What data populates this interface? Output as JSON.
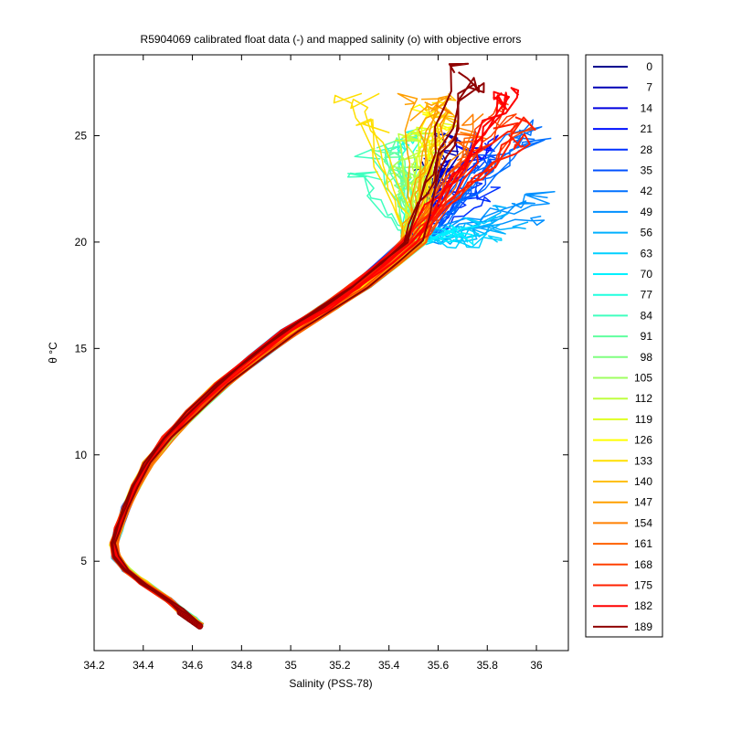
{
  "chart_data": {
    "type": "line",
    "title": "R5904069 calibrated float data (-) and mapped salinity (o) with objective errors",
    "xlabel": "Salinity (PSS-78)",
    "ylabel": "θ °C",
    "xlim": [
      34.2,
      36.13
    ],
    "ylim": [
      0.8,
      28.8
    ],
    "xticks": [
      34.2,
      34.4,
      34.6,
      34.8,
      35.0,
      35.2,
      35.4,
      35.6,
      35.8,
      36.0
    ],
    "xtick_labels": [
      "34.2",
      "34.4",
      "34.6",
      "34.8",
      "35",
      "35.2",
      "35.4",
      "35.6",
      "35.8",
      "36"
    ],
    "yticks": [
      5,
      10,
      15,
      20,
      25
    ],
    "ytick_labels": [
      "5",
      "10",
      "15",
      "20",
      "25"
    ],
    "grid": false,
    "legend_position": "outside-right",
    "base_profile": {
      "salinity": [
        34.63,
        34.6,
        34.55,
        34.5,
        34.4,
        34.33,
        34.29,
        34.28,
        34.3,
        34.33,
        34.37,
        34.42,
        34.5,
        34.6,
        34.72,
        34.86,
        35.0,
        35.15,
        35.28,
        35.4,
        35.5
      ],
      "theta": [
        2.0,
        2.3,
        2.7,
        3.2,
        4.0,
        4.6,
        5.2,
        5.8,
        6.5,
        7.5,
        8.5,
        9.6,
        10.8,
        12.0,
        13.3,
        14.6,
        15.8,
        16.9,
        17.9,
        19.0,
        20.0
      ]
    },
    "series": [
      {
        "name": "0",
        "color": "#00008f",
        "surface_salinity": 35.6,
        "surface_theta": 23.5
      },
      {
        "name": "7",
        "color": "#0000b5",
        "surface_salinity": 35.68,
        "surface_theta": 24.2
      },
      {
        "name": "14",
        "color": "#0000df",
        "surface_salinity": 35.65,
        "surface_theta": 23.0
      },
      {
        "name": "21",
        "color": "#0010ff",
        "surface_salinity": 35.75,
        "surface_theta": 24.8
      },
      {
        "name": "28",
        "color": "#0030ff",
        "surface_salinity": 35.72,
        "surface_theta": 22.5
      },
      {
        "name": "35",
        "color": "#0050ff",
        "surface_salinity": 35.8,
        "surface_theta": 23.8
      },
      {
        "name": "42",
        "color": "#0070ff",
        "surface_salinity": 35.95,
        "surface_theta": 25.0
      },
      {
        "name": "49",
        "color": "#0090ff",
        "surface_salinity": 35.98,
        "surface_theta": 21.5
      },
      {
        "name": "56",
        "color": "#00b0ff",
        "surface_salinity": 35.85,
        "surface_theta": 21.0
      },
      {
        "name": "63",
        "color": "#00d0ff",
        "surface_salinity": 35.78,
        "surface_theta": 20.5
      },
      {
        "name": "70",
        "color": "#00f0ff",
        "surface_salinity": 35.7,
        "surface_theta": 20.2
      },
      {
        "name": "77",
        "color": "#20ffdf",
        "surface_salinity": 35.48,
        "surface_theta": 25.0
      },
      {
        "name": "84",
        "color": "#40ffbf",
        "surface_salinity": 35.32,
        "surface_theta": 23.8
      },
      {
        "name": "91",
        "color": "#60ff9f",
        "surface_salinity": 35.4,
        "surface_theta": 24.6
      },
      {
        "name": "98",
        "color": "#80ff80",
        "surface_salinity": 35.45,
        "surface_theta": 22.8
      },
      {
        "name": "105",
        "color": "#9fff60",
        "surface_salinity": 35.5,
        "surface_theta": 23.5
      },
      {
        "name": "112",
        "color": "#bfff40",
        "surface_salinity": 35.52,
        "surface_theta": 24.5
      },
      {
        "name": "119",
        "color": "#dfff20",
        "surface_salinity": 35.55,
        "surface_theta": 25.2
      },
      {
        "name": "126",
        "color": "#ffff00",
        "surface_salinity": 35.58,
        "surface_theta": 25.8
      },
      {
        "name": "133",
        "color": "#ffdf00",
        "surface_salinity": 35.3,
        "surface_theta": 26.1
      },
      {
        "name": "140",
        "color": "#ffbf00",
        "surface_salinity": 35.62,
        "surface_theta": 26.4
      },
      {
        "name": "147",
        "color": "#ff9f00",
        "surface_salinity": 35.55,
        "surface_theta": 26.2
      },
      {
        "name": "154",
        "color": "#ff8000",
        "surface_salinity": 35.7,
        "surface_theta": 25.5
      },
      {
        "name": "161",
        "color": "#ff6000",
        "surface_salinity": 35.75,
        "surface_theta": 24.5
      },
      {
        "name": "168",
        "color": "#ff4000",
        "surface_salinity": 35.9,
        "surface_theta": 26.0
      },
      {
        "name": "175",
        "color": "#ff2000",
        "surface_salinity": 35.92,
        "surface_theta": 25.0
      },
      {
        "name": "182",
        "color": "#ff0000",
        "surface_salinity": 35.85,
        "surface_theta": 26.8
      },
      {
        "name": "189",
        "color": "#8f0000",
        "surface_salinity": 35.72,
        "surface_theta": 27.7
      }
    ]
  }
}
